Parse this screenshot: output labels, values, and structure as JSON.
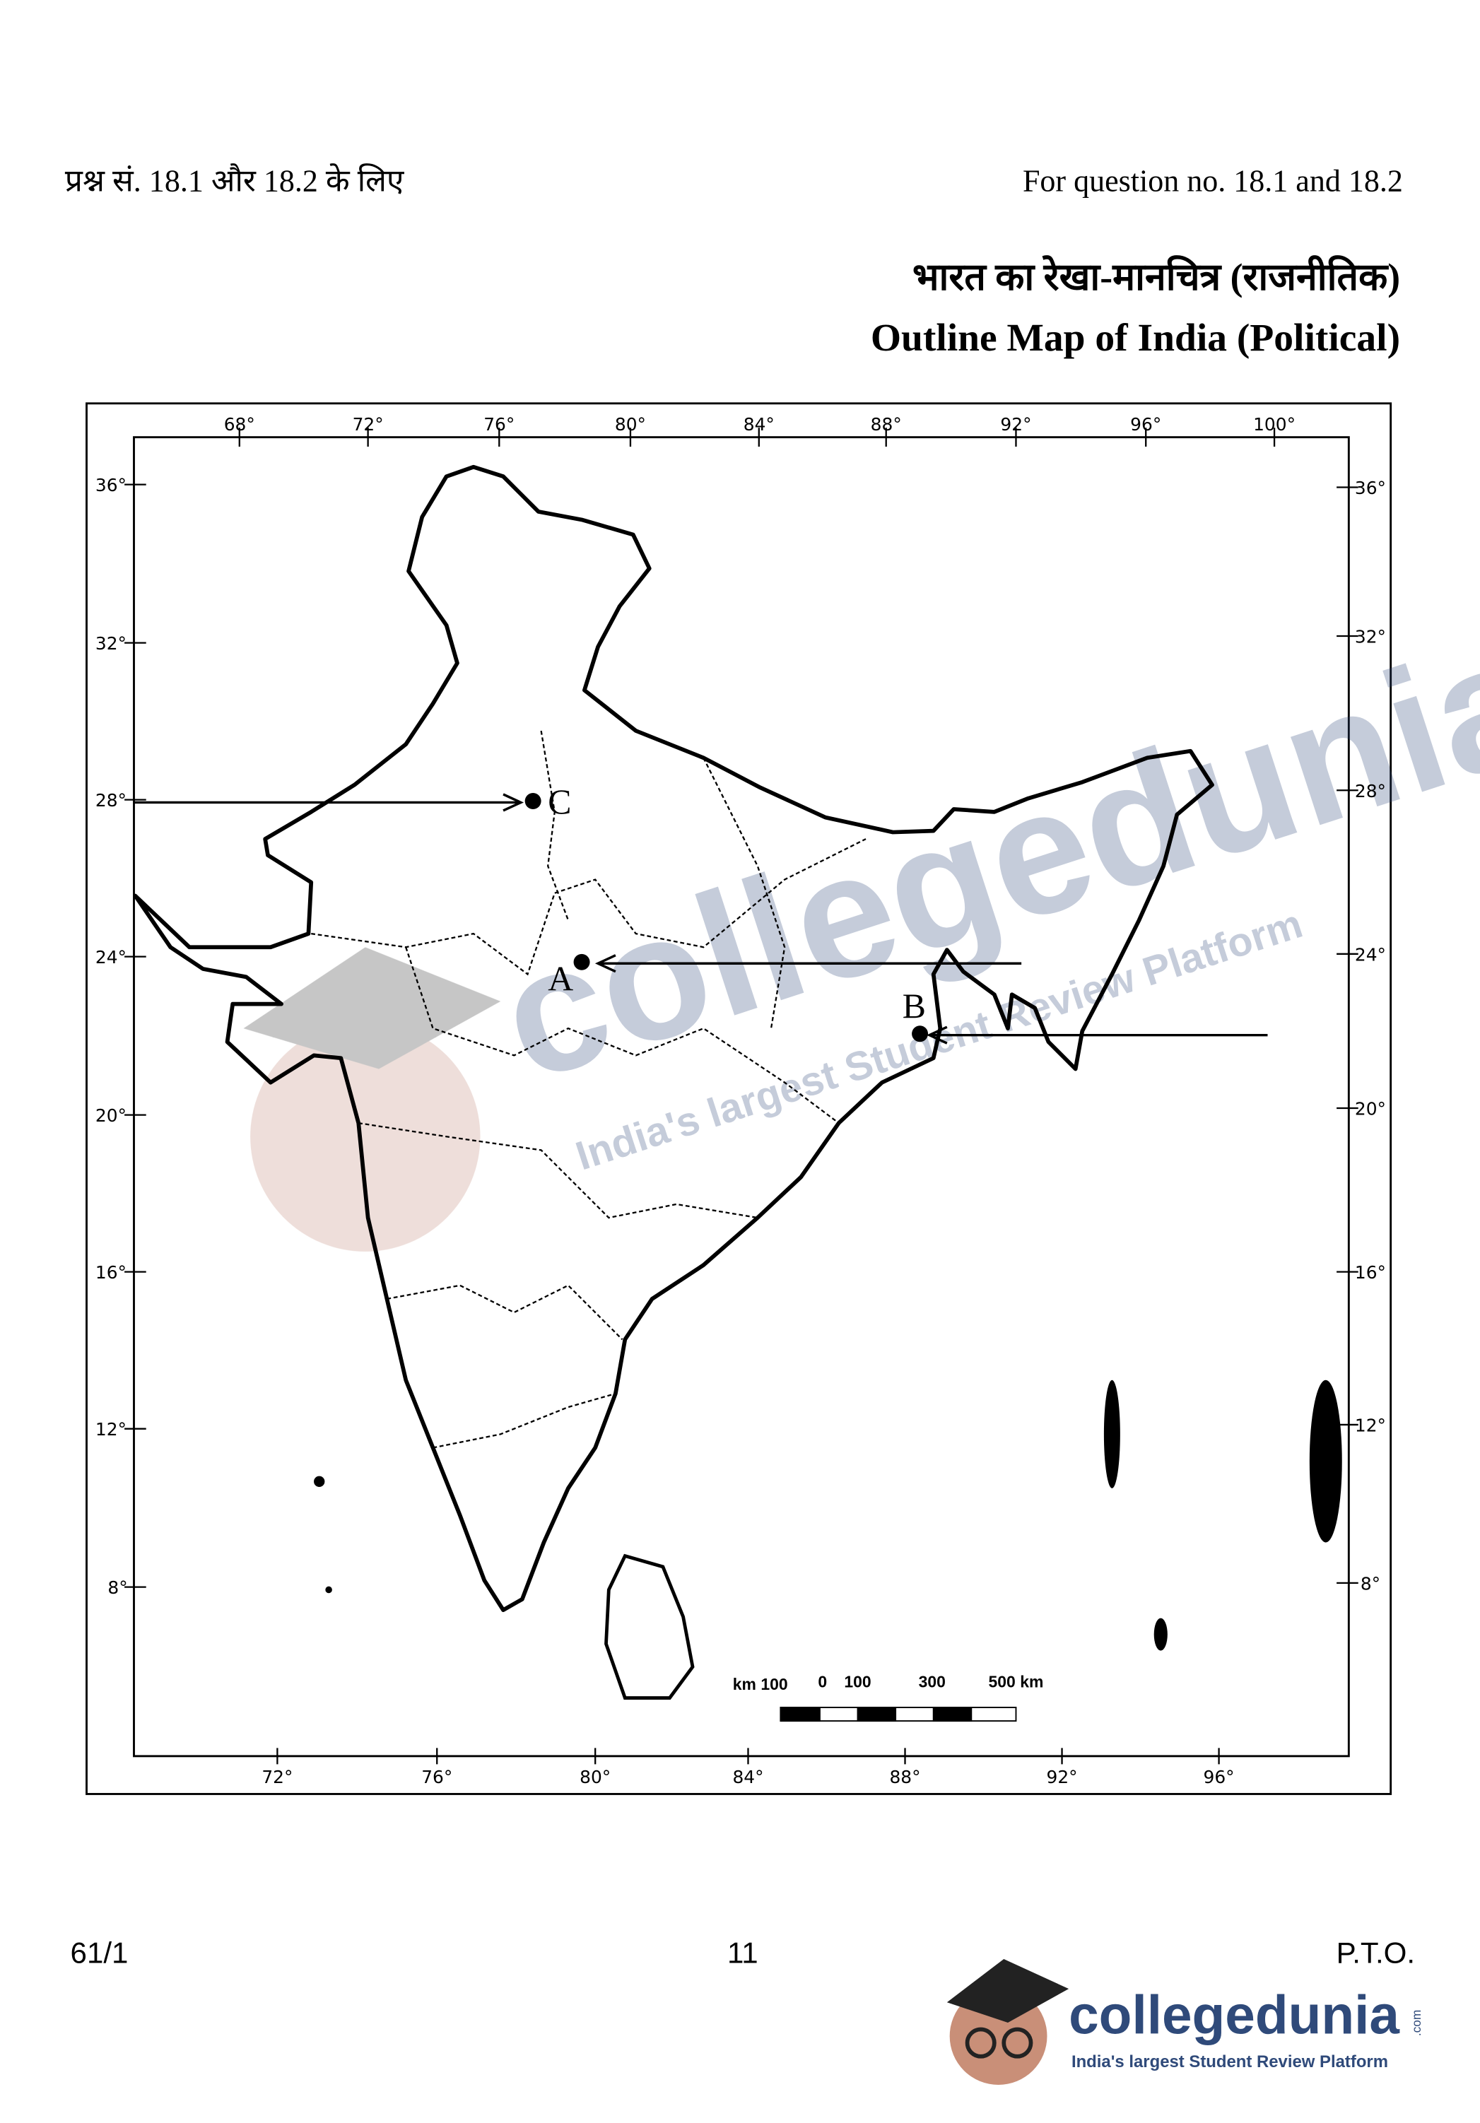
{
  "header": {
    "left": "प्रश्न सं. 18.1 और 18.2 के लिए",
    "right": "For question no. 18.1 and 18.2"
  },
  "title": {
    "hindi": "भारत का रेखा-मानचित्र (राजनीतिक)",
    "english": "Outline Map of India (Political)"
  },
  "map": {
    "top_ticks": [
      "68°",
      "72°",
      "76°",
      "80°",
      "84°",
      "88°",
      "92°",
      "96°",
      "100°"
    ],
    "bottom_ticks": [
      "72°",
      "76°",
      "80°",
      "84°",
      "88°",
      "92°",
      "96°"
    ],
    "left_ticks": [
      "36°",
      "32°",
      "28°",
      "24°",
      "20°",
      "16°",
      "12°",
      "8°"
    ],
    "right_ticks": [
      "36°",
      "32°",
      "28°",
      "24°",
      "20°",
      "16°",
      "12°",
      "8°"
    ],
    "points": [
      {
        "label": "C"
      },
      {
        "label": "A"
      },
      {
        "label": "B"
      }
    ],
    "scale_labels": [
      "km 100",
      "0",
      "100",
      "300",
      "500 km"
    ]
  },
  "footer": {
    "left": "61/1",
    "center": "11",
    "right": "P.T.O."
  },
  "watermark": {
    "name": "collegedunia",
    "domain": ".com",
    "tagline": "India's largest Student Review Platform"
  }
}
